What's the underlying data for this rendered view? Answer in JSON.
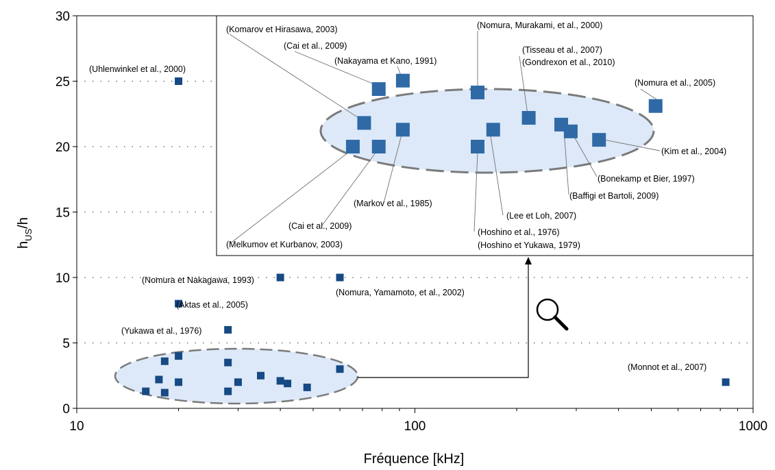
{
  "chart_data": {
    "type": "scatter",
    "xscale": "log",
    "xlim": [
      10,
      1000
    ],
    "ylim": [
      0,
      30
    ],
    "xlabel": "Fréquence [kHz]",
    "ylabel_main": "h",
    "ylabel_sub": "US",
    "ylabel_tail": "/h",
    "grid": "dotted horizontal",
    "xticks": [
      "10",
      "100",
      "1000"
    ],
    "yticks": [
      "0",
      "5",
      "10",
      "15",
      "20",
      "25",
      "30"
    ],
    "color": "#174a84",
    "inset_color": "#2f6aa6",
    "ellipse_fill": "#dde9f8",
    "ellipse_stroke": "#7a7a7a",
    "points": [
      {
        "x": 20,
        "y": 25
      },
      {
        "x": 40,
        "y": 10
      },
      {
        "x": 60,
        "y": 10
      },
      {
        "x": 20,
        "y": 8
      },
      {
        "x": 28,
        "y": 6
      },
      {
        "x": 830,
        "y": 2
      },
      {
        "x": 16,
        "y": 1.3
      },
      {
        "x": 17.5,
        "y": 2.2
      },
      {
        "x": 18.2,
        "y": 3.6
      },
      {
        "x": 18.2,
        "y": 1.2
      },
      {
        "x": 20,
        "y": 4
      },
      {
        "x": 20,
        "y": 2
      },
      {
        "x": 28,
        "y": 3.5
      },
      {
        "x": 28,
        "y": 1.3
      },
      {
        "x": 30,
        "y": 2
      },
      {
        "x": 35,
        "y": 2.5
      },
      {
        "x": 40,
        "y": 2.1
      },
      {
        "x": 42,
        "y": 1.9
      },
      {
        "x": 48,
        "y": 1.6
      },
      {
        "x": 60,
        "y": 3
      }
    ],
    "inset_points": [
      {
        "x": 70,
        "y": 19.6
      },
      {
        "x": 75,
        "y": 21
      },
      {
        "x": 82,
        "y": 19.6
      },
      {
        "x": 82,
        "y": 23
      },
      {
        "x": 95,
        "y": 20.6
      },
      {
        "x": 95,
        "y": 23.5
      },
      {
        "x": 150,
        "y": 22.8
      },
      {
        "x": 150,
        "y": 19.6
      },
      {
        "x": 165,
        "y": 20.6
      },
      {
        "x": 205,
        "y": 21.3
      },
      {
        "x": 250,
        "y": 20.9
      },
      {
        "x": 265,
        "y": 20.5
      },
      {
        "x": 315,
        "y": 20
      },
      {
        "x": 445,
        "y": 22
      }
    ],
    "annotations": [
      {
        "text": "(Uhlenwinkel et al., 2000)"
      },
      {
        "text": "(Nomura et Nakagawa, 1993)"
      },
      {
        "text": "(Nomura, Yamamoto, et al., 2002)"
      },
      {
        "text": "(Aktas et al., 2005)"
      },
      {
        "text": "(Yukawa et al., 1976)"
      },
      {
        "text": "(Monnot et al., 2007)"
      },
      {
        "text": "(Komarov et Hirasawa, 2003)"
      },
      {
        "text": "(Cai et al., 2009)"
      },
      {
        "text": "(Nakayama et Kano, 1991)"
      },
      {
        "text": "(Nomura, Murakami, et al., 2000)"
      },
      {
        "text": "(Tisseau et al., 2007)"
      },
      {
        "text": "(Gondrexon et al., 2010)"
      },
      {
        "text": "(Nomura et al., 2005)"
      },
      {
        "text": "(Kim et al., 2004)"
      },
      {
        "text": "(Bonekamp et Bier, 1997)"
      },
      {
        "text": "(Baffigi et Bartoli, 2009)"
      },
      {
        "text": "(Markov et al., 1985)"
      },
      {
        "text": "(Lee et Loh, 2007)"
      },
      {
        "text": "(Cai et al., 2009)"
      },
      {
        "text": "(Hoshino et al., 1976)"
      },
      {
        "text": "(Hoshino et Yukawa, 1979)"
      },
      {
        "text": "(Melkumov et Kurbanov, 2003)"
      }
    ]
  }
}
